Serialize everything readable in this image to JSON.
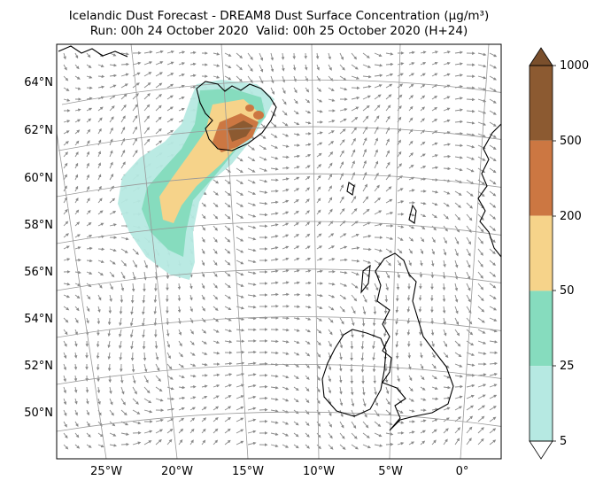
{
  "header": {
    "title_line1": "Icelandic Dust Forecast - DREAM8 Dust Surface Concentration (μg/m³)",
    "title_line2": "Run: 00h 24 October 2020  Valid: 00h 25 October 2020 (H+24)"
  },
  "map": {
    "lat_labels": [
      "64°N",
      "62°N",
      "60°N",
      "58°N",
      "56°N",
      "54°N",
      "52°N",
      "50°N"
    ],
    "lon_labels": [
      "25°W",
      "20°W",
      "15°W",
      "10°W",
      "5°W",
      "0°"
    ],
    "overlay": "wind vectors (grey arrows)"
  },
  "colorbar": {
    "tick_labels": [
      "1000",
      "500",
      "200",
      "50",
      "25",
      "5"
    ],
    "bins": [
      {
        "from": 500,
        "to": 1000,
        "color": "#8c5a31"
      },
      {
        "from": 200,
        "to": 500,
        "color": "#cc7742"
      },
      {
        "from": 50,
        "to": 200,
        "color": "#f6d38a"
      },
      {
        "from": 25,
        "to": 50,
        "color": "#86dcbe"
      },
      {
        "from": 5,
        "to": 25,
        "color": "#b6e9e2"
      }
    ],
    "extend": "both",
    "over_color": "#7a4f2c",
    "under_color": "#ffffff"
  }
}
